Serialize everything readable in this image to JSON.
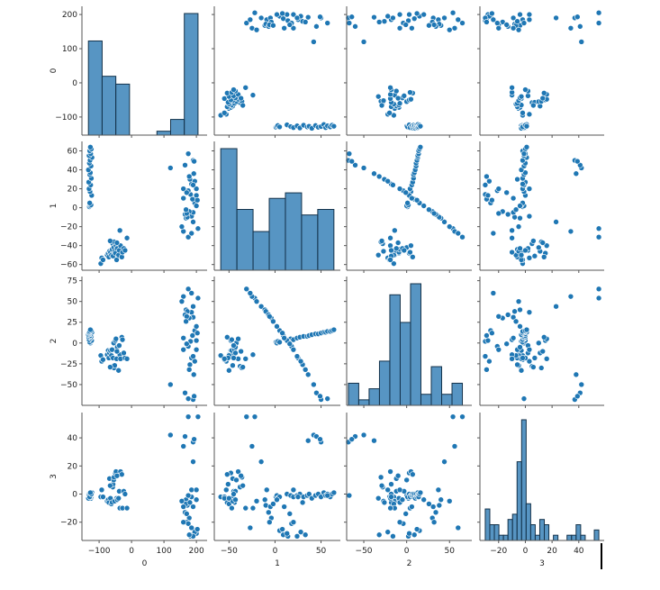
{
  "chart_data": {
    "type": "pairplot",
    "variables": [
      "0",
      "1",
      "2",
      "3"
    ],
    "axis_labels": [
      "0",
      "1",
      "2",
      "3"
    ],
    "diag_kind": "histogram",
    "offdiag_kind": "scatter",
    "hist_bins": [
      8,
      7,
      11,
      25
    ],
    "point_color": "#1f77b4",
    "bar_color": "#3a82b9",
    "grid": false,
    "x_ticks": [
      [
        -100,
        0,
        100,
        200
      ],
      [
        -50,
        0,
        50
      ],
      [
        -50,
        0,
        50
      ],
      [
        -20,
        0,
        20,
        40
      ]
    ],
    "y_ticks": [
      [
        -100,
        0,
        100,
        200
      ],
      [
        -60,
        -40,
        -20,
        0,
        20,
        40,
        60
      ],
      [
        -50,
        -25,
        0,
        25,
        50,
        75
      ],
      [
        -20,
        0,
        20,
        40
      ]
    ],
    "x_ranges": [
      [
        -153,
        233
      ],
      [
        -66,
        71
      ],
      [
        -70,
        76
      ],
      [
        -34,
        59
      ]
    ],
    "y_ranges": [
      [
        -153,
        224
      ],
      [
        -66,
        70
      ],
      [
        -75,
        80
      ],
      [
        -33,
        58
      ]
    ],
    "points": [
      [
        -130,
        1,
        1,
        -2
      ],
      [
        -127,
        2,
        0,
        -1
      ],
      [
        -125,
        3,
        2,
        -3
      ],
      [
        -129,
        5,
        1,
        -2
      ],
      [
        -123,
        13,
        3,
        0
      ],
      [
        -128,
        17,
        5,
        -1
      ],
      [
        -131,
        20,
        4,
        -2
      ],
      [
        -126,
        24,
        6,
        -1
      ],
      [
        -132,
        27,
        7,
        0
      ],
      [
        -124,
        31,
        8,
        -2
      ],
      [
        -129,
        35,
        8,
        -1
      ],
      [
        -127,
        37,
        9,
        0
      ],
      [
        -133,
        40,
        10,
        -3
      ],
      [
        -125,
        44,
        11,
        -1
      ],
      [
        -130,
        47,
        11,
        0
      ],
      [
        -128,
        50,
        12,
        -2
      ],
      [
        -122,
        53,
        13,
        1
      ],
      [
        -131,
        55,
        13,
        -1
      ],
      [
        -126,
        57,
        14,
        0
      ],
      [
        -129,
        60,
        14,
        -2
      ],
      [
        -124,
        62,
        15,
        0
      ],
      [
        -127,
        64,
        16,
        1
      ],
      [
        -95,
        -59,
        -15,
        -2
      ],
      [
        -92,
        -53,
        -22,
        3
      ],
      [
        -88,
        -55,
        -20,
        -2
      ],
      [
        -75,
        -50,
        -14,
        -5
      ],
      [
        -72,
        -48,
        -9,
        -4
      ],
      [
        -70,
        -52,
        -18,
        -6
      ],
      [
        -68,
        -46,
        -12,
        11
      ],
      [
        -65,
        -47,
        -9,
        -3
      ],
      [
        -62,
        -50,
        -15,
        -7
      ],
      [
        -60,
        -44,
        -8,
        -6
      ],
      [
        -58,
        -38,
        -28,
        5
      ],
      [
        -57,
        -51,
        -18,
        7
      ],
      [
        -55,
        -42,
        0,
        10
      ],
      [
        -54,
        -36,
        -30,
        12
      ],
      [
        -52,
        -46,
        -27,
        -5
      ],
      [
        -50,
        -48,
        3,
        15
      ],
      [
        -48,
        -40,
        5,
        16
      ],
      [
        -46,
        -55,
        -19,
        -3
      ],
      [
        -44,
        -43,
        -5,
        -4
      ],
      [
        -40,
        -50,
        -33,
        -3
      ],
      [
        -38,
        -45,
        -3,
        2
      ],
      [
        -36,
        -24,
        -14,
        -10
      ],
      [
        -34,
        -40,
        -19,
        16
      ],
      [
        -30,
        -52,
        7,
        14
      ],
      [
        -28,
        -47,
        4,
        -10
      ],
      [
        -24,
        -43,
        -12,
        2
      ],
      [
        -20,
        -45,
        -18,
        0
      ],
      [
        -14,
        -32,
        -19,
        -10
      ],
      [
        -66,
        -35,
        -29,
        6
      ],
      [
        -45,
        -37,
        -10,
        13
      ],
      [
        175,
        -31,
        65,
        55
      ],
      [
        205,
        -22,
        54,
        55
      ],
      [
        160,
        -25,
        56,
        34
      ],
      [
        190,
        -15,
        44,
        23
      ],
      [
        185,
        -9,
        37,
        3
      ],
      [
        168,
        -11,
        40,
        -4
      ],
      [
        172,
        -10,
        38,
        -8
      ],
      [
        190,
        -5,
        31,
        -9
      ],
      [
        165,
        -7,
        34,
        -13
      ],
      [
        178,
        -4,
        30,
        -17
      ],
      [
        170,
        -6,
        32,
        -20
      ],
      [
        195,
        5,
        15,
        -26
      ],
      [
        188,
        9,
        9,
        -29
      ],
      [
        182,
        14,
        2,
        -30
      ],
      [
        200,
        13,
        3,
        -28
      ],
      [
        175,
        18,
        -4,
        -21
      ],
      [
        160,
        20,
        -8,
        -20
      ],
      [
        192,
        36,
        -38,
        38
      ],
      [
        120,
        42,
        -50,
        42
      ],
      [
        165,
        45,
        -60,
        41
      ],
      [
        190,
        50,
        -68,
        37
      ],
      [
        193,
        49,
        -64,
        39
      ],
      [
        155,
        -20,
        50,
        -5
      ],
      [
        168,
        -2,
        26,
        -7
      ],
      [
        200,
        2,
        20,
        -4
      ],
      [
        185,
        25,
        -18,
        -2
      ],
      [
        180,
        30,
        -26,
        -6
      ],
      [
        170,
        16,
        -1,
        -14
      ],
      [
        195,
        28,
        -22,
        -27
      ],
      [
        160,
        10,
        6,
        -9
      ],
      [
        200,
        20,
        -8,
        3
      ],
      [
        185,
        -27,
        60,
        -24
      ],
      [
        175,
        57,
        -67,
        -1
      ],
      [
        190,
        24,
        -16,
        -30
      ],
      [
        203,
        8,
        12,
        -25
      ],
      [
        178,
        33,
        -32,
        -29
      ]
    ]
  }
}
